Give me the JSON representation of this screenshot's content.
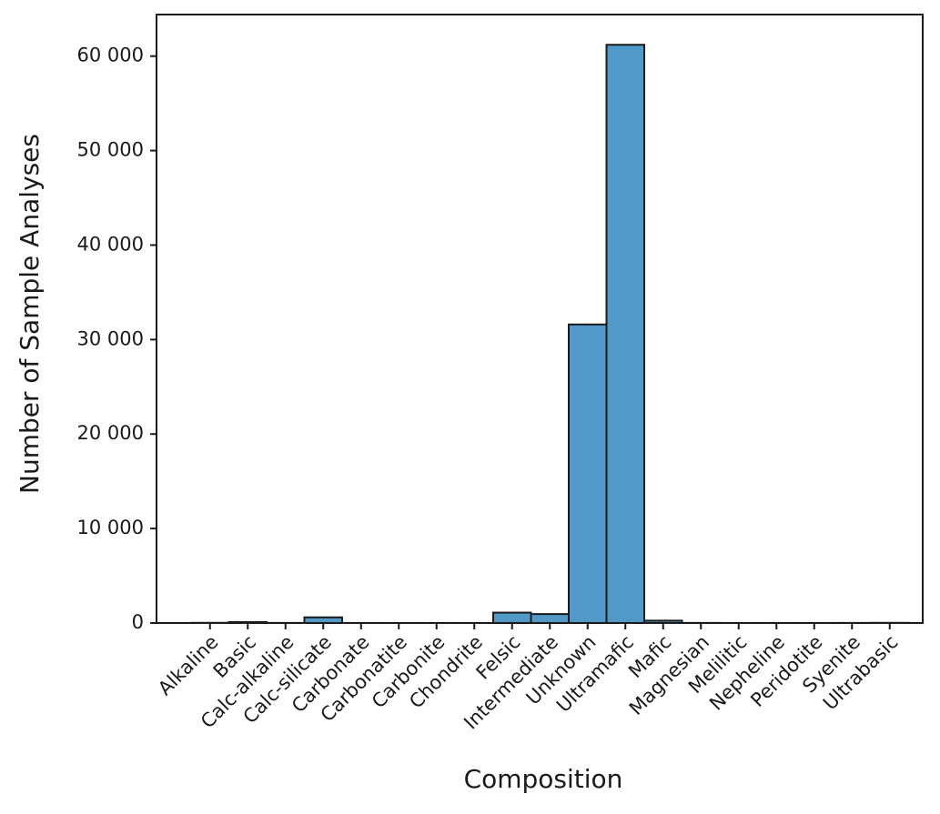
{
  "chart_data": {
    "type": "bar",
    "xlabel": "Composition",
    "ylabel": "Number of Sample Analyses",
    "categories": [
      "Alkaline",
      "Basic",
      "Calc-alkaline",
      "Calc-silicate",
      "Carbonate",
      "Carbonatite",
      "Carbonite",
      "Chondrite",
      "Felsic",
      "Intermediate",
      "Unknown",
      "Ultramafic",
      "Mafic",
      "Magnesian",
      "Melilitic",
      "Nepheline",
      "Peridotite",
      "Syenite",
      "Ultrabasic"
    ],
    "values": [
      20,
      100,
      10,
      600,
      5,
      5,
      5,
      5,
      1100,
      950,
      31600,
      61200,
      250,
      10,
      5,
      5,
      5,
      10,
      20
    ],
    "color": "#5199c8",
    "ylim": [
      0,
      64400
    ],
    "yticks": [
      0,
      {
        "value": 10000,
        "label": "10 000"
      },
      {
        "value": 20000,
        "label": "20 000"
      },
      {
        "value": 30000,
        "label": "30 000"
      },
      {
        "value": 40000,
        "label": "40 000"
      },
      {
        "value": 50000,
        "label": "50 000"
      },
      {
        "value": 60000,
        "label": "60 000"
      }
    ],
    "grid": false
  }
}
